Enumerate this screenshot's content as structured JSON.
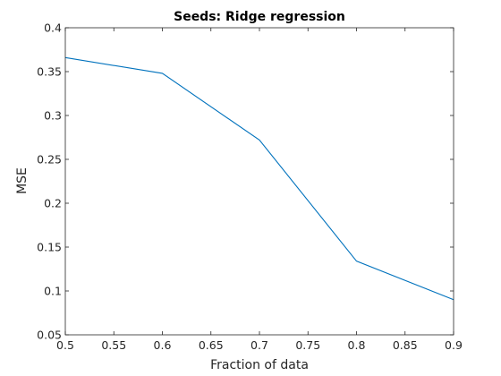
{
  "chart_data": {
    "type": "line",
    "title": "Seeds: Ridge regression",
    "xlabel": "Fraction of data",
    "ylabel": "MSE",
    "xlim": [
      0.5,
      0.9
    ],
    "ylim": [
      0.05,
      0.4
    ],
    "xticks": [
      "0.5",
      "0.55",
      "0.6",
      "0.65",
      "0.7",
      "0.75",
      "0.8",
      "0.85",
      "0.9"
    ],
    "yticks": [
      "0.05",
      "0.1",
      "0.15",
      "0.2",
      "0.25",
      "0.3",
      "0.35",
      "0.4"
    ],
    "grid": false,
    "series": [
      {
        "color": "#0072BD",
        "x": [
          0.5,
          0.6,
          0.7,
          0.8,
          0.9
        ],
        "y": [
          0.366,
          0.348,
          0.272,
          0.134,
          0.09
        ]
      }
    ]
  }
}
